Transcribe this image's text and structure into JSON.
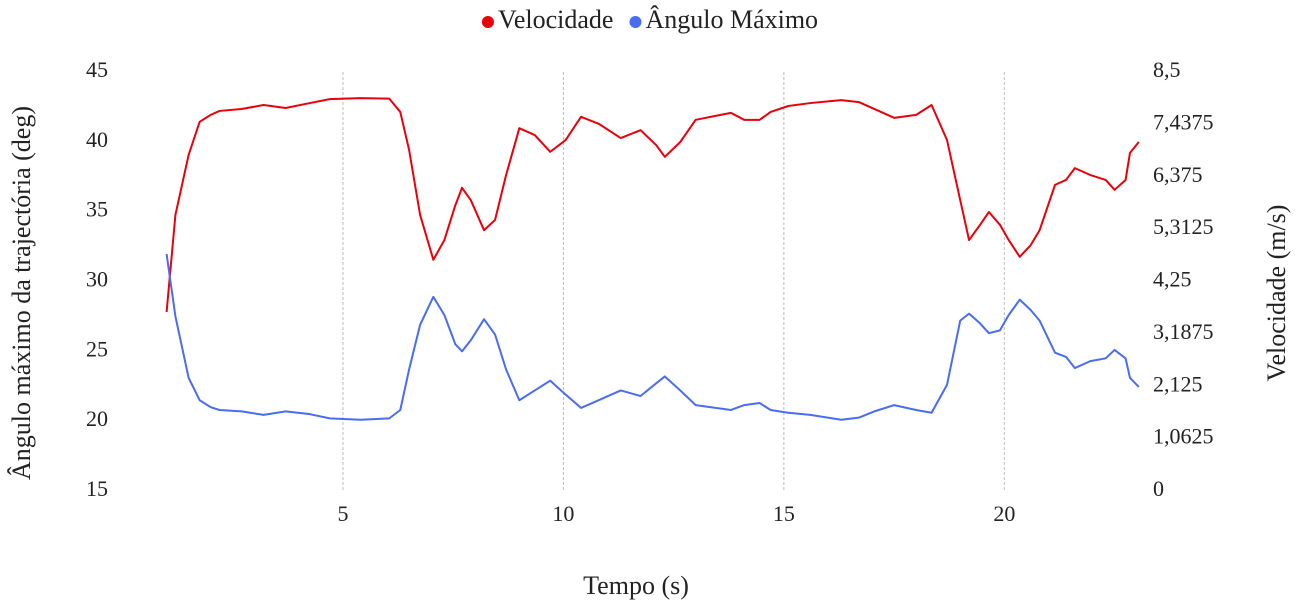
{
  "chart_data": {
    "type": "line",
    "x_label": "Tempo (s)",
    "y_label": "Ângulo máximo da trajectória (deg)",
    "y2_label": "Velocidade (m/s)",
    "x": [
      1.0,
      1.2,
      1.5,
      1.75,
      2.0,
      2.2,
      2.7,
      3.2,
      3.7,
      4.25,
      4.7,
      5.4,
      6.05,
      6.3,
      6.5,
      6.75,
      7.05,
      7.3,
      7.55,
      7.7,
      7.9,
      8.2,
      8.45,
      8.7,
      9.0,
      9.35,
      9.7,
      10.05,
      10.4,
      10.8,
      11.3,
      11.75,
      12.1,
      12.3,
      12.65,
      13.0,
      13.45,
      13.8,
      14.1,
      14.45,
      14.7,
      15.1,
      15.6,
      16.3,
      16.7,
      17.05,
      17.5,
      18.0,
      18.35,
      18.7,
      19.0,
      19.2,
      19.45,
      19.65,
      19.9,
      20.1,
      20.35,
      20.6,
      20.8,
      21.15,
      21.4,
      21.6,
      21.95,
      22.3,
      22.5,
      22.75,
      22.85,
      23.05
    ],
    "series": [
      {
        "name": "Velocidade",
        "color": "#e8000b",
        "axis": "y2",
        "values": [
          3.63,
          5.6,
          6.82,
          7.49,
          7.63,
          7.71,
          7.75,
          7.83,
          7.77,
          7.87,
          7.95,
          7.97,
          7.96,
          7.69,
          6.92,
          5.6,
          4.69,
          5.09,
          5.8,
          6.15,
          5.9,
          5.29,
          5.5,
          6.41,
          7.36,
          7.22,
          6.88,
          7.12,
          7.59,
          7.45,
          7.16,
          7.32,
          7.02,
          6.78,
          7.08,
          7.53,
          7.61,
          7.67,
          7.53,
          7.53,
          7.69,
          7.81,
          7.87,
          7.93,
          7.89,
          7.75,
          7.57,
          7.63,
          7.83,
          7.12,
          5.9,
          5.09,
          5.4,
          5.66,
          5.4,
          5.09,
          4.75,
          4.99,
          5.29,
          6.21,
          6.31,
          6.55,
          6.41,
          6.31,
          6.11,
          6.31,
          6.86,
          7.08
        ]
      },
      {
        "name": "Ângulo Máximo",
        "color": "#4a6cf0",
        "values": [
          31.97,
          27.5,
          23.1,
          21.5,
          21.0,
          20.8,
          20.7,
          20.45,
          20.7,
          20.5,
          20.2,
          20.1,
          20.2,
          20.8,
          23.7,
          26.9,
          28.9,
          27.6,
          25.5,
          25.0,
          25.8,
          27.3,
          26.2,
          23.7,
          21.5,
          22.2,
          22.9,
          21.9,
          20.95,
          21.5,
          22.2,
          21.8,
          22.7,
          23.2,
          22.2,
          21.15,
          20.95,
          20.8,
          21.15,
          21.3,
          20.8,
          20.6,
          20.45,
          20.1,
          20.25,
          20.7,
          21.15,
          20.8,
          20.6,
          22.6,
          27.2,
          27.7,
          27.0,
          26.3,
          26.5,
          27.6,
          28.7,
          27.95,
          27.2,
          24.9,
          24.6,
          23.8,
          24.3,
          24.5,
          25.1,
          24.5,
          23.1,
          22.45
        ]
      }
    ],
    "xlim": [
      0,
      23.1
    ],
    "xticks": [
      5,
      10,
      15,
      20
    ],
    "ylim": [
      15,
      45
    ],
    "yticks": [
      15,
      20,
      25,
      30,
      35,
      40,
      45
    ],
    "y2lim": [
      0,
      8.5
    ],
    "y2ticks": [
      0,
      {
        "value": 1.0625,
        "label": "1,0625"
      },
      {
        "value": 2.125,
        "label": "2,125"
      },
      {
        "value": 3.1875,
        "label": "3,1875"
      },
      {
        "value": 4.25,
        "label": "4,25"
      },
      {
        "value": 5.3125,
        "label": "5,3125"
      },
      {
        "value": 6.375,
        "label": "6,375"
      },
      {
        "value": 7.4375,
        "label": "7,4375"
      },
      {
        "value": 8.5,
        "label": "8,5"
      }
    ],
    "x_grid": true,
    "legend": "top"
  }
}
